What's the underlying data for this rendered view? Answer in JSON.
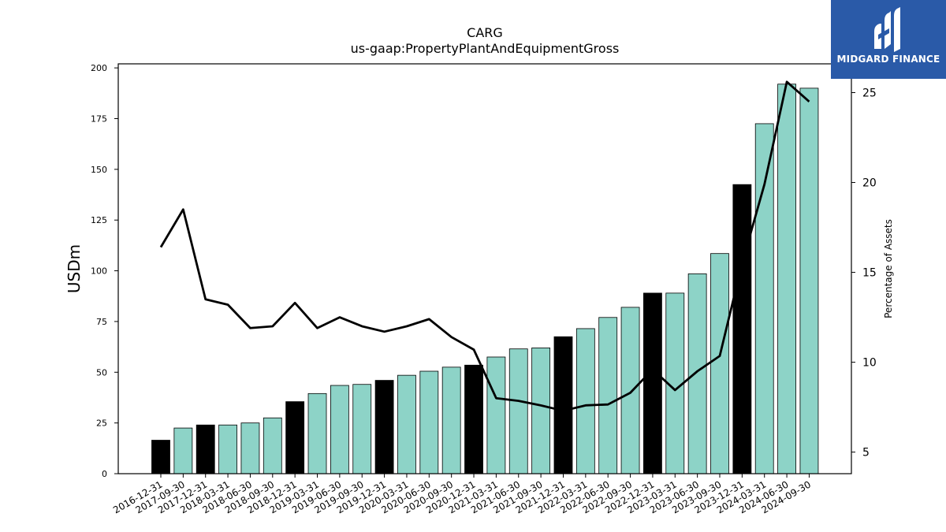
{
  "colors": {
    "bar_default": "#8dd3c7",
    "bar_year_end": "#000000",
    "line": "#000000",
    "logo_bg": "#2a5aa8"
  },
  "logo": {
    "text": "MIDGARD FINANCE",
    "icon": "midgard-logo-icon"
  },
  "chart_data": {
    "type": "bar",
    "title": "CARG",
    "subtitle": "us-gaap:PropertyPlantAndEquipmentGross",
    "ylabel": "USDm",
    "y2label": "Percentage of Assets",
    "ylim": [
      0,
      202
    ],
    "y2lim": [
      3.8,
      26.6
    ],
    "yticks": [
      0,
      25,
      50,
      75,
      100,
      125,
      150,
      175,
      200
    ],
    "y2ticks": [
      5,
      10,
      15,
      20,
      25
    ],
    "grid": false,
    "categories": [
      "2016-12-31",
      "2017-09-30",
      "2017-12-31",
      "2018-03-31",
      "2018-06-30",
      "2018-09-30",
      "2018-12-31",
      "2019-03-31",
      "2019-06-30",
      "2019-09-30",
      "2019-12-31",
      "2020-03-31",
      "2020-06-30",
      "2020-09-30",
      "2020-12-31",
      "2021-03-31",
      "2021-06-30",
      "2021-09-30",
      "2021-12-31",
      "2022-03-31",
      "2022-06-30",
      "2022-09-30",
      "2022-12-31",
      "2023-03-31",
      "2023-06-30",
      "2023-09-30",
      "2023-12-31",
      "2024-03-31",
      "2024-06-30",
      "2024-09-30"
    ],
    "series": [
      {
        "type": "bar",
        "axis": "left",
        "values": [
          16.5,
          22.5,
          24,
          24,
          25,
          27.5,
          35.5,
          39.5,
          43.5,
          44,
          46,
          48.5,
          50.5,
          52.5,
          53.5,
          57.5,
          61.5,
          62,
          67.5,
          71.5,
          77,
          82,
          89,
          89,
          98.5,
          108.5,
          142.5,
          172.5,
          192,
          190
        ],
        "year_end": [
          true,
          false,
          true,
          false,
          false,
          false,
          true,
          false,
          false,
          false,
          true,
          false,
          false,
          false,
          true,
          false,
          false,
          false,
          true,
          false,
          false,
          false,
          true,
          false,
          false,
          false,
          true,
          false,
          false,
          false
        ]
      },
      {
        "type": "line",
        "axis": "right",
        "values": [
          16.4,
          18.5,
          13.5,
          13.2,
          11.9,
          12.0,
          13.3,
          11.9,
          12.5,
          12.0,
          11.7,
          12.0,
          12.4,
          11.4,
          10.7,
          8.0,
          7.85,
          7.6,
          7.3,
          7.6,
          7.65,
          8.3,
          9.6,
          8.45,
          9.5,
          10.35,
          15.5,
          19.9,
          25.6,
          24.5
        ]
      }
    ]
  }
}
